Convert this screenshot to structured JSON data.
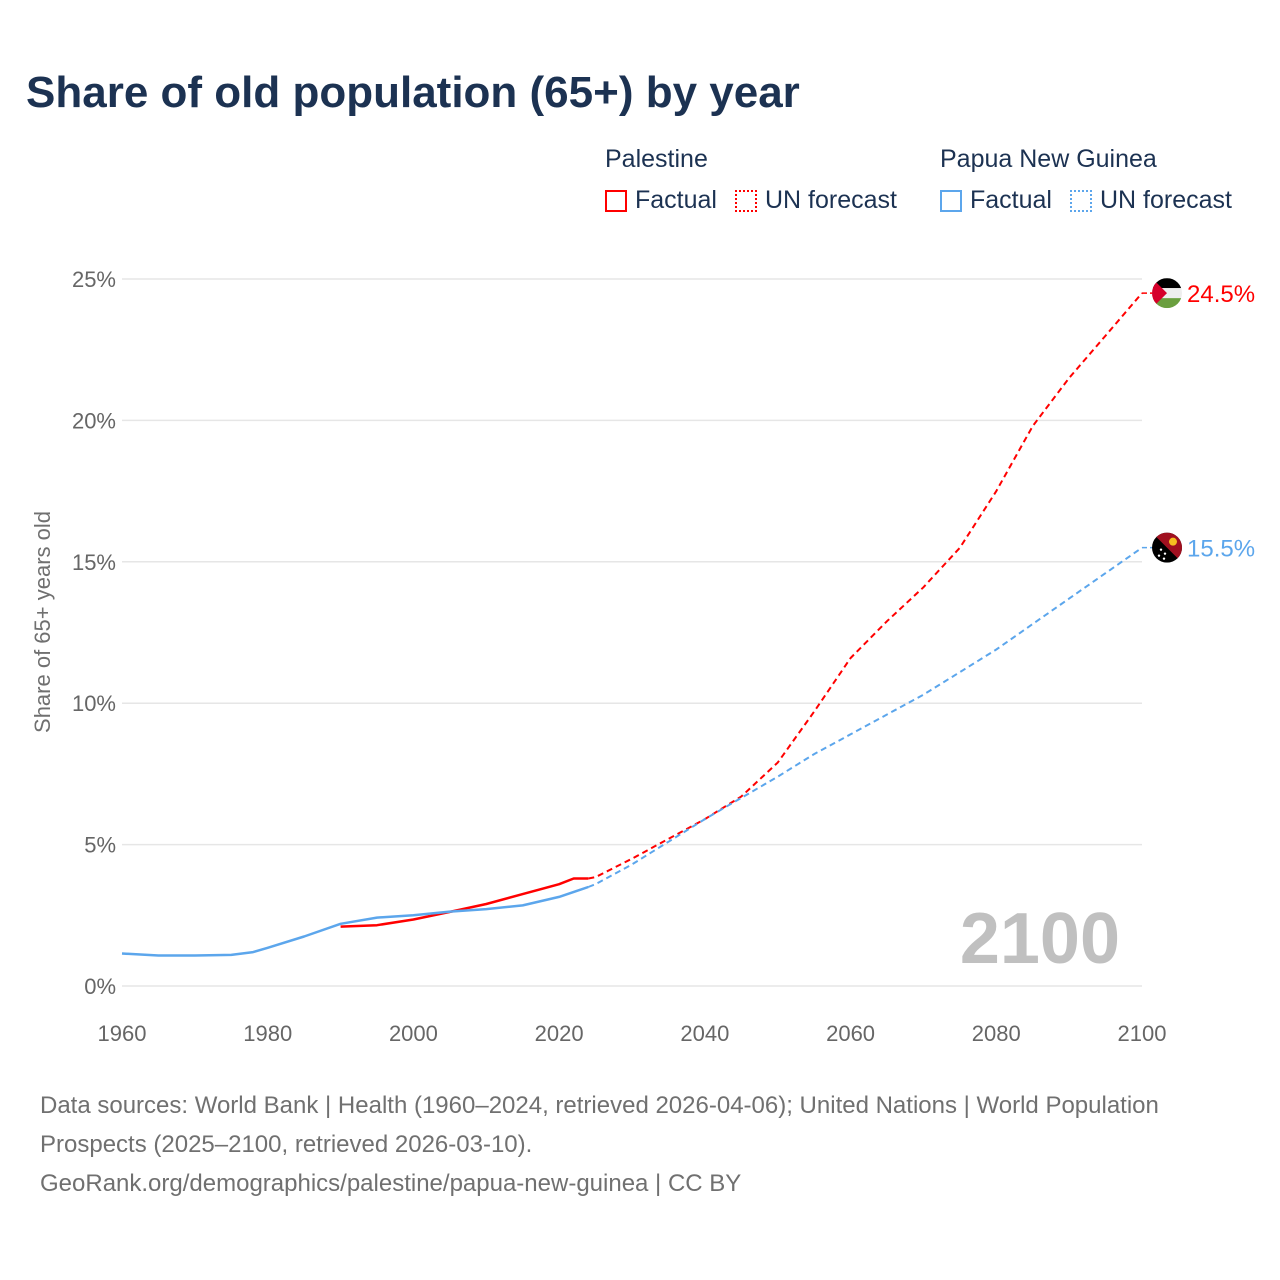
{
  "title": "Share of old population (65+) by year",
  "legend": [
    {
      "country": "Palestine",
      "factual": "Factual",
      "forecast": "UN forecast",
      "color": "#ff0000"
    },
    {
      "country": "Papua New Guinea",
      "factual": "Factual",
      "forecast": "UN forecast",
      "color": "#5ca6ec"
    }
  ],
  "year_watermark": "2100",
  "footer": {
    "sources": "Data sources: World Bank | Health (1960–2024, retrieved 2026-04-06); United Nations | World Population Prospects (2025–2100, retrieved 2026-03-10).",
    "link": "GeoRank.org/demographics/palestine/papua-new-guinea | CC BY"
  },
  "chart_data": {
    "type": "line",
    "title": "Share of old population (65+) by year",
    "xlabel": "",
    "ylabel": "Share of 65+ years old",
    "xlim": [
      1960,
      2100
    ],
    "ylim": [
      0,
      25
    ],
    "x_ticks": [
      "1960",
      "1980",
      "2000",
      "2020",
      "2040",
      "2060",
      "2080",
      "2100"
    ],
    "y_ticks": [
      "0%",
      "5%",
      "10%",
      "15%",
      "20%",
      "25%"
    ],
    "grid": true,
    "series": [
      {
        "name": "Palestine",
        "color": "#ff0000",
        "end_label": "24.5%",
        "factual": [
          [
            1990,
            2.1
          ],
          [
            1995,
            2.15
          ],
          [
            2000,
            2.35
          ],
          [
            2005,
            2.62
          ],
          [
            2010,
            2.9
          ],
          [
            2015,
            3.25
          ],
          [
            2020,
            3.6
          ],
          [
            2022,
            3.8
          ],
          [
            2024,
            3.8
          ]
        ],
        "forecast": [
          [
            2025,
            3.85
          ],
          [
            2030,
            4.5
          ],
          [
            2035,
            5.2
          ],
          [
            2040,
            5.9
          ],
          [
            2045,
            6.7
          ],
          [
            2050,
            7.9
          ],
          [
            2055,
            9.7
          ],
          [
            2060,
            11.6
          ],
          [
            2065,
            12.9
          ],
          [
            2070,
            14.1
          ],
          [
            2075,
            15.5
          ],
          [
            2080,
            17.5
          ],
          [
            2085,
            19.8
          ],
          [
            2090,
            21.5
          ],
          [
            2095,
            23.0
          ],
          [
            2100,
            24.5
          ]
        ]
      },
      {
        "name": "Papua New Guinea",
        "color": "#5ca6ec",
        "end_label": "15.5%",
        "factual": [
          [
            1960,
            1.15
          ],
          [
            1965,
            1.08
          ],
          [
            1970,
            1.08
          ],
          [
            1975,
            1.1
          ],
          [
            1978,
            1.2
          ],
          [
            1980,
            1.35
          ],
          [
            1985,
            1.75
          ],
          [
            1990,
            2.2
          ],
          [
            1995,
            2.42
          ],
          [
            2000,
            2.5
          ],
          [
            2005,
            2.63
          ],
          [
            2010,
            2.72
          ],
          [
            2015,
            2.85
          ],
          [
            2020,
            3.15
          ],
          [
            2024,
            3.5
          ]
        ],
        "forecast": [
          [
            2025,
            3.6
          ],
          [
            2030,
            4.3
          ],
          [
            2035,
            5.1
          ],
          [
            2040,
            5.9
          ],
          [
            2045,
            6.65
          ],
          [
            2050,
            7.4
          ],
          [
            2055,
            8.2
          ],
          [
            2060,
            8.9
          ],
          [
            2065,
            9.6
          ],
          [
            2070,
            10.3
          ],
          [
            2075,
            11.1
          ],
          [
            2080,
            11.9
          ],
          [
            2085,
            12.8
          ],
          [
            2090,
            13.7
          ],
          [
            2095,
            14.6
          ],
          [
            2100,
            15.5
          ]
        ]
      }
    ]
  }
}
